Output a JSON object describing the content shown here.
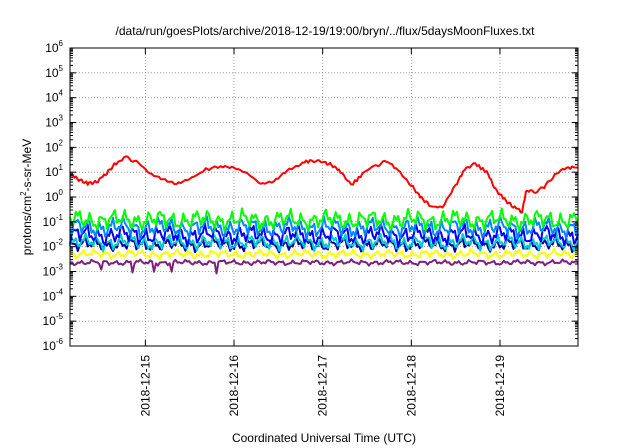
{
  "chart_data": {
    "type": "line",
    "title": "/data/run/goesPlots/archive/2018-12-19/19:00/bryn/../flux/5daysMoonFluxes.txt",
    "xlabel": "Coordinated Universal Time (UTC)",
    "ylabel_parts": {
      "base": "protons/cm",
      "sup": "2",
      "rest": "-s-sr-MeV"
    },
    "y_scale": "log",
    "ylim_exponents": [
      -6,
      6
    ],
    "y_tick_labels": [
      {
        "base": "10",
        "exp": "-6"
      },
      {
        "base": "10",
        "exp": "-5"
      },
      {
        "base": "10",
        "exp": "-4"
      },
      {
        "base": "10",
        "exp": "-3"
      },
      {
        "base": "10",
        "exp": "-2"
      },
      {
        "base": "10",
        "exp": "-1"
      },
      {
        "base": "10",
        "exp": "0"
      },
      {
        "base": "10",
        "exp": "1"
      },
      {
        "base": "10",
        "exp": "2"
      },
      {
        "base": "10",
        "exp": "3"
      },
      {
        "base": "10",
        "exp": "4"
      },
      {
        "base": "10",
        "exp": "5"
      },
      {
        "base": "10",
        "exp": "6"
      }
    ],
    "xlim_days": [
      14.15,
      19.88
    ],
    "x_ticks": [
      {
        "day": 15,
        "label": "2018-12-15"
      },
      {
        "day": 16,
        "label": "2018-12-16"
      },
      {
        "day": 17,
        "label": "2018-12-17"
      },
      {
        "day": 18,
        "label": "2018-12-18"
      },
      {
        "day": 19,
        "label": "2018-12-19"
      }
    ],
    "grid": true,
    "series": [
      {
        "color": "#ff0000",
        "points": [
          [
            14.15,
            8
          ],
          [
            14.25,
            5
          ],
          [
            14.35,
            3.5
          ],
          [
            14.45,
            4
          ],
          [
            14.55,
            8
          ],
          [
            14.65,
            20
          ],
          [
            14.78,
            40
          ],
          [
            14.9,
            25
          ],
          [
            15.05,
            8
          ],
          [
            15.2,
            5
          ],
          [
            15.35,
            3.5
          ],
          [
            15.5,
            6
          ],
          [
            15.65,
            12
          ],
          [
            15.85,
            17
          ],
          [
            16.0,
            14
          ],
          [
            16.15,
            8
          ],
          [
            16.3,
            3
          ],
          [
            16.45,
            4
          ],
          [
            16.6,
            12
          ],
          [
            16.75,
            22
          ],
          [
            16.88,
            30
          ],
          [
            17.0,
            25
          ],
          [
            17.1,
            20
          ],
          [
            17.2,
            10
          ],
          [
            17.32,
            3
          ],
          [
            17.45,
            8
          ],
          [
            17.6,
            18
          ],
          [
            17.72,
            28
          ],
          [
            17.85,
            12
          ],
          [
            18.0,
            3
          ],
          [
            18.1,
            1
          ],
          [
            18.2,
            0.5
          ],
          [
            18.35,
            0.4
          ],
          [
            18.5,
            3
          ],
          [
            18.6,
            12
          ],
          [
            18.72,
            22
          ],
          [
            18.85,
            10
          ],
          [
            18.95,
            2
          ],
          [
            19.05,
            0.8
          ],
          [
            19.15,
            0.4
          ],
          [
            19.25,
            0.25
          ],
          [
            19.3,
            2
          ],
          [
            19.38,
            1.5
          ],
          [
            19.5,
            2.5
          ],
          [
            19.62,
            8
          ],
          [
            19.75,
            15
          ],
          [
            19.88,
            15
          ]
        ]
      },
      {
        "color": "#00ff00",
        "base": 0.12,
        "noise": 0.45,
        "phase": 0.3
      },
      {
        "color": "#0088ff",
        "base": 0.06,
        "noise": 0.45,
        "phase": 1.1
      },
      {
        "color": "#0000ff",
        "base": 0.03,
        "noise": 0.45,
        "phase": 2.0
      },
      {
        "color": "#00cccc",
        "base": 0.015,
        "noise": 0.35,
        "phase": 2.7
      },
      {
        "color": "#0000aa",
        "base": 0.012,
        "noise": 0.3,
        "phase": 3.3
      },
      {
        "color": "#ffff00",
        "base": 0.005,
        "noise": 0.2,
        "phase": 4.1
      },
      {
        "color": "#7f1f7f",
        "base": 0.0023,
        "noise": 0.12,
        "phase": 5.2,
        "spikes_days": [
          14.5,
          14.85,
          15.1,
          15.3,
          15.8
        ]
      }
    ]
  }
}
